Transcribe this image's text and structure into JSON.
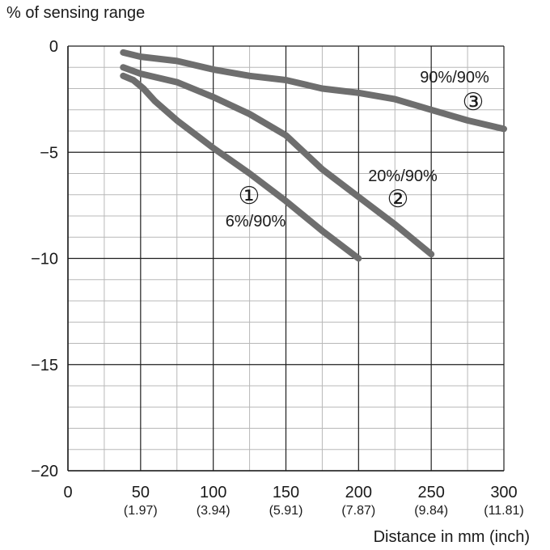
{
  "chart_data": {
    "type": "line",
    "ylabel": "% of sensing range",
    "xlabel": "Distance in mm (inch)",
    "xlim": [
      0,
      300
    ],
    "ylim": [
      -20,
      0
    ],
    "grid": true,
    "x_ticks": [
      {
        "value": 0,
        "label": "0",
        "sub": ""
      },
      {
        "value": 50,
        "label": "50",
        "sub": "(1.97)"
      },
      {
        "value": 100,
        "label": "100",
        "sub": "(3.94)"
      },
      {
        "value": 150,
        "label": "150",
        "sub": "(5.91)"
      },
      {
        "value": 200,
        "label": "200",
        "sub": "(7.87)"
      },
      {
        "value": 250,
        "label": "250",
        "sub": "(9.84)"
      },
      {
        "value": 300,
        "label": "300",
        "sub": "(11.81)"
      }
    ],
    "y_ticks": [
      {
        "value": 0,
        "label": "0"
      },
      {
        "value": -5,
        "label": "−5"
      },
      {
        "value": -10,
        "label": "−10"
      },
      {
        "value": -15,
        "label": "−15"
      },
      {
        "value": -20,
        "label": "−20"
      }
    ],
    "series": [
      {
        "marker": "①",
        "name": "6%/90%",
        "color": "#6e6e6e",
        "x": [
          38,
          45,
          52,
          60,
          75,
          100,
          125,
          150,
          175,
          200
        ],
        "y": [
          -1.4,
          -1.6,
          -2.0,
          -2.6,
          -3.5,
          -4.8,
          -6.0,
          -7.3,
          -8.7,
          -10.0
        ]
      },
      {
        "marker": "②",
        "name": "20%/90%",
        "color": "#6e6e6e",
        "x": [
          38,
          50,
          75,
          100,
          125,
          150,
          175,
          200,
          225,
          250
        ],
        "y": [
          -1.0,
          -1.3,
          -1.7,
          -2.4,
          -3.2,
          -4.2,
          -5.8,
          -7.1,
          -8.4,
          -9.8
        ]
      },
      {
        "marker": "③",
        "name": "90%/90%",
        "color": "#6e6e6e",
        "x": [
          38,
          50,
          75,
          100,
          125,
          150,
          175,
          200,
          225,
          250,
          275,
          300
        ],
        "y": [
          -0.3,
          -0.5,
          -0.7,
          -1.1,
          -1.4,
          -1.6,
          -2.0,
          -2.2,
          -2.5,
          -3.0,
          -3.5,
          -3.9
        ]
      }
    ]
  }
}
